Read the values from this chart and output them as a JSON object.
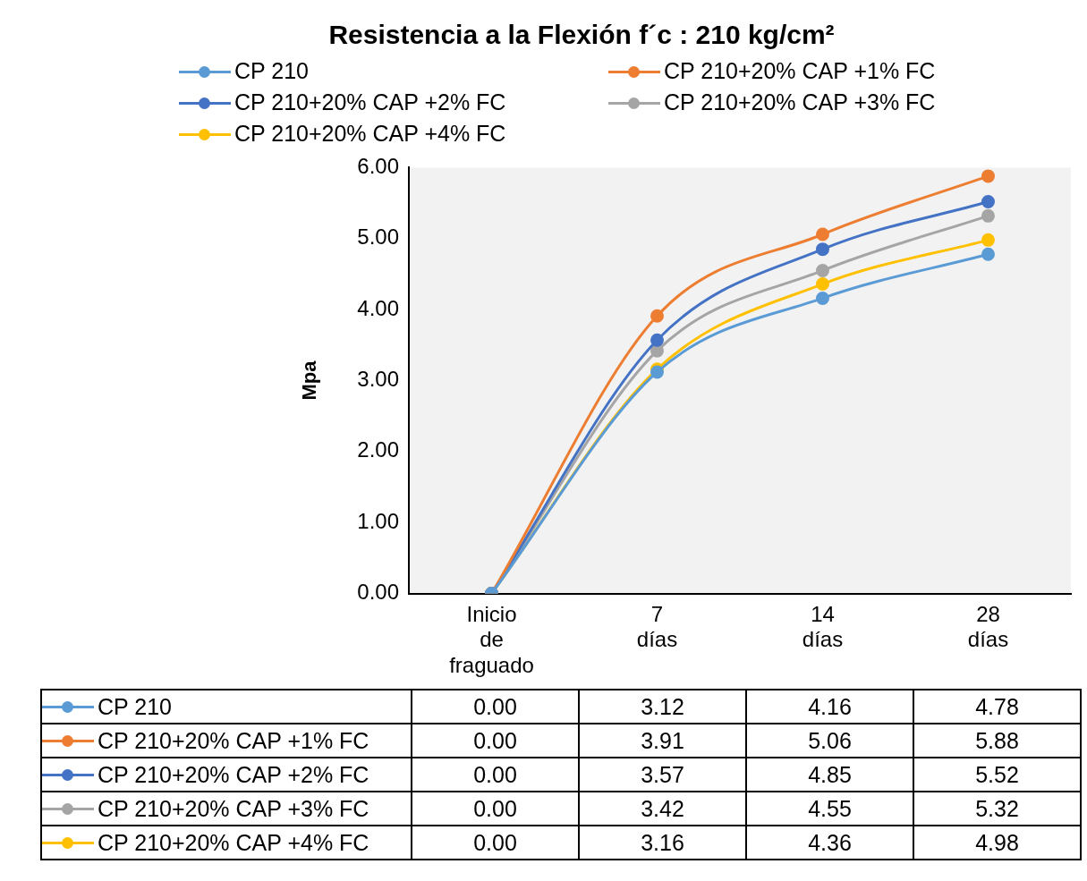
{
  "chart_data": {
    "type": "line",
    "title": "Resistencia a la Flexión f´c : 210 kg/cm²",
    "ylabel": "Mpa",
    "categories": [
      "Inicio de fraguado",
      "7 días",
      "14 días",
      "28 días"
    ],
    "series": [
      {
        "name": "CP 210",
        "color": "#5b9bd5",
        "values": [
          0.0,
          3.12,
          4.16,
          4.78
        ],
        "value_labels": [
          "0.00",
          "3.12",
          "4.16",
          "4.78"
        ]
      },
      {
        "name": "CP 210+20% CAP +1% FC",
        "color": "#ed7d31",
        "values": [
          0.0,
          3.91,
          5.06,
          5.88
        ],
        "value_labels": [
          "0.00",
          "3.91",
          "5.06",
          "5.88"
        ]
      },
      {
        "name": "CP 210+20% CAP +2% FC",
        "color": "#4472c4",
        "values": [
          0.0,
          3.57,
          4.85,
          5.52
        ],
        "value_labels": [
          "0.00",
          "3.57",
          "4.85",
          "5.52"
        ]
      },
      {
        "name": "CP 210+20% CAP +3% FC",
        "color": "#a5a5a5",
        "values": [
          0.0,
          3.42,
          4.55,
          5.32
        ],
        "value_labels": [
          "0.00",
          "3.42",
          "4.55",
          "5.32"
        ]
      },
      {
        "name": "CP 210+20% CAP +4% FC",
        "color": "#ffc000",
        "values": [
          0.0,
          3.16,
          4.36,
          4.98
        ],
        "value_labels": [
          "0.00",
          "3.16",
          "4.36",
          "4.98"
        ]
      }
    ],
    "ylim": [
      0,
      6
    ],
    "yticks": [
      {
        "value": 0,
        "label": "0.00"
      },
      {
        "value": 1,
        "label": "1.00"
      },
      {
        "value": 2,
        "label": "2.00"
      },
      {
        "value": 3,
        "label": "3.00"
      },
      {
        "value": 4,
        "label": "4.00"
      },
      {
        "value": 5,
        "label": "5.00"
      },
      {
        "value": 6,
        "label": "6.00"
      }
    ],
    "grid": false,
    "legend": "top",
    "marker": "circle",
    "line_style": "solid"
  }
}
